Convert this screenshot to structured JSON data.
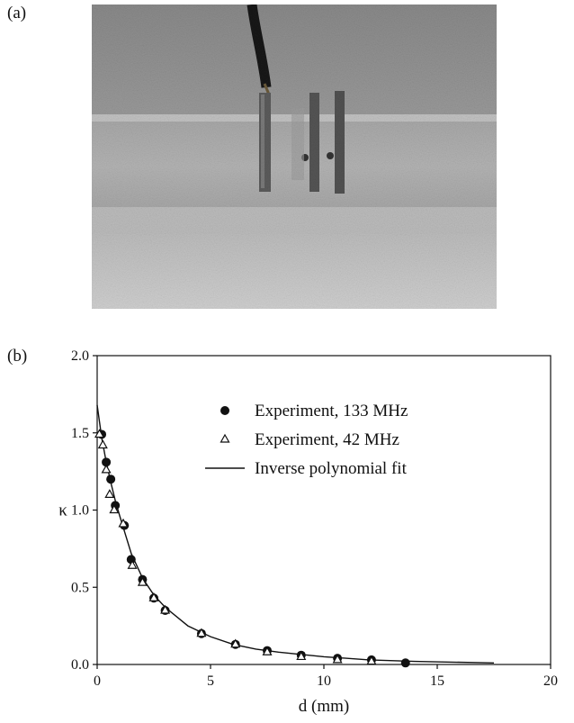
{
  "panel_labels": {
    "a": "(a)",
    "b": "(b)"
  },
  "photo": {
    "description_icon": "photo-of-three-electrodes"
  },
  "chart_data": {
    "type": "scatter",
    "xlabel": "d (mm)",
    "ylabel": "κ",
    "xlim": [
      0,
      20
    ],
    "ylim": [
      0,
      2.0
    ],
    "x_ticks": [
      "0",
      "5",
      "10",
      "15",
      "20"
    ],
    "y_ticks": [
      "0.0",
      "0.5",
      "1.0",
      "1.5",
      "2.0"
    ],
    "grid": false,
    "legend_position": "top-right",
    "series": [
      {
        "name": "Experiment, 133 MHz",
        "marker": "filled-circle",
        "x": [
          0.2,
          0.4,
          0.6,
          0.8,
          1.2,
          1.5,
          2.0,
          2.5,
          3.0,
          4.6,
          6.1,
          7.5,
          9.0,
          10.6,
          12.1,
          13.6
        ],
        "y": [
          1.49,
          1.31,
          1.2,
          1.03,
          0.9,
          0.68,
          0.55,
          0.43,
          0.35,
          0.2,
          0.13,
          0.09,
          0.06,
          0.04,
          0.03,
          0.01
        ]
      },
      {
        "name": "Experiment, 42 MHz",
        "marker": "open-triangle",
        "x": [
          0.1,
          0.25,
          0.4,
          0.55,
          0.75,
          1.15,
          1.55,
          2.0,
          2.5,
          3.0,
          4.6,
          6.1,
          7.5,
          9.0,
          10.6,
          12.1
        ],
        "y": [
          1.49,
          1.42,
          1.26,
          1.1,
          1.0,
          0.91,
          0.64,
          0.53,
          0.43,
          0.35,
          0.2,
          0.13,
          0.08,
          0.05,
          0.03,
          0.02
        ]
      },
      {
        "name": "Inverse polynomial fit",
        "marker": "line",
        "x": [
          0,
          0.2,
          0.4,
          0.6,
          0.8,
          1.0,
          1.5,
          2.0,
          2.5,
          3.0,
          4.0,
          5.0,
          6.0,
          7.0,
          8.0,
          10.0,
          12.0,
          14.0,
          17.5
        ],
        "y": [
          1.68,
          1.47,
          1.31,
          1.18,
          1.06,
          0.96,
          0.72,
          0.56,
          0.45,
          0.37,
          0.25,
          0.18,
          0.13,
          0.1,
          0.08,
          0.05,
          0.03,
          0.02,
          0.01
        ]
      }
    ]
  }
}
